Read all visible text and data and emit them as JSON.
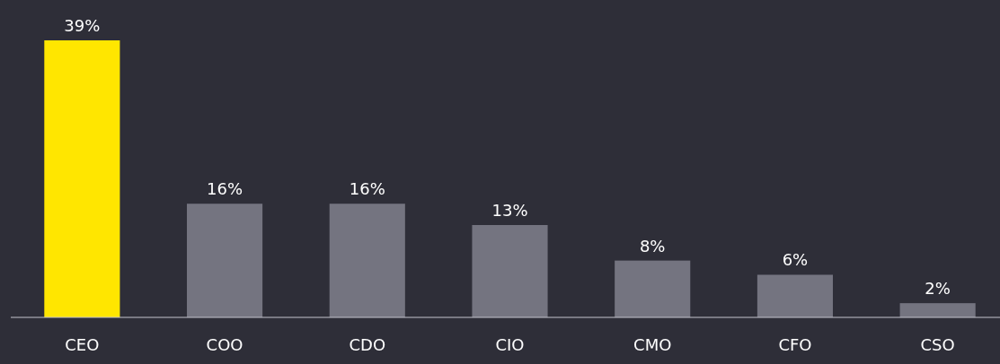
{
  "chart_data": {
    "type": "bar",
    "categories": [
      "CEO",
      "COO",
      "CDO",
      "CIO",
      "CMO",
      "CFO",
      "CSO"
    ],
    "values": [
      39,
      16,
      16,
      13,
      8,
      6,
      2
    ],
    "colors": [
      "#ffe600",
      "#747480",
      "#747480",
      "#747480",
      "#747480",
      "#747480",
      "#747480"
    ],
    "value_labels": [
      "39%",
      "16%",
      "16%",
      "13%",
      "8%",
      "6%",
      "2%"
    ]
  }
}
